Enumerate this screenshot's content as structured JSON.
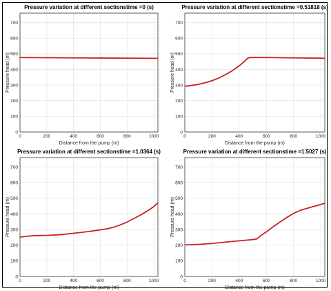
{
  "colors": {
    "series": "#cc1f1f"
  },
  "chart_data": [
    {
      "type": "line",
      "title": "Pressure variation at different sectionstime =0 (s)",
      "xlabel": "Distance from the pump (m)",
      "ylabel": "Pressure head (m)",
      "xlim": [
        0,
        1030
      ],
      "ylim": [
        0,
        760
      ],
      "xticks": [
        "0",
        "200",
        "400",
        "600",
        "800",
        "1000"
      ],
      "yticks": [
        "0",
        "100",
        "200",
        "300",
        "400",
        "500",
        "600",
        "700"
      ],
      "grid": true,
      "x": [
        0,
        200,
        400,
        600,
        800,
        1000,
        1030
      ],
      "y": [
        476,
        475,
        474,
        473,
        472,
        471,
        471
      ]
    },
    {
      "type": "line",
      "title": "Pressure variation at different sectionstime =0.51818 (s)",
      "xlabel": "Distance from the pump (m)",
      "ylabel": "Pressure head (m)",
      "xlim": [
        0,
        1030
      ],
      "ylim": [
        0,
        760
      ],
      "xticks": [
        "0",
        "200",
        "400",
        "600",
        "800",
        "1000"
      ],
      "yticks": [
        "0",
        "100",
        "200",
        "300",
        "400",
        "500",
        "600",
        "700"
      ],
      "grid": true,
      "x": [
        0,
        50,
        100,
        150,
        200,
        250,
        300,
        350,
        400,
        430,
        460,
        480,
        600,
        800,
        1000,
        1030
      ],
      "y": [
        292,
        298,
        305,
        315,
        328,
        345,
        367,
        392,
        423,
        445,
        470,
        477,
        476,
        474,
        472,
        471
      ]
    },
    {
      "type": "line",
      "title": "Pressure variation at different sectionstime =1.0364 (s)",
      "xlabel": "Distance from the pump (m)",
      "ylabel": "Pressure head (m)",
      "xlim": [
        0,
        1030
      ],
      "ylim": [
        0,
        760
      ],
      "xticks": [
        "0",
        "200",
        "400",
        "600",
        "800",
        "1000"
      ],
      "yticks": [
        "0",
        "100",
        "200",
        "300",
        "400",
        "500",
        "600",
        "700"
      ],
      "grid": true,
      "x": [
        0,
        50,
        100,
        200,
        300,
        400,
        500,
        600,
        650,
        700,
        750,
        800,
        850,
        900,
        950,
        1000,
        1030
      ],
      "y": [
        252,
        257,
        261,
        263,
        267,
        276,
        286,
        298,
        305,
        315,
        330,
        348,
        370,
        393,
        418,
        447,
        471
      ]
    },
    {
      "type": "line",
      "title": "Pressure variation at different sectionstime =1.5027 (s)",
      "xlabel": "Distance from the pump (m)",
      "ylabel": "Pressure head (m)",
      "xlim": [
        0,
        1030
      ],
      "ylim": [
        0,
        760
      ],
      "xticks": [
        "0",
        "200",
        "400",
        "600",
        "800",
        "1000"
      ],
      "yticks": [
        "0",
        "100",
        "200",
        "300",
        "400",
        "500",
        "600",
        "700"
      ],
      "grid": true,
      "x": [
        0,
        100,
        200,
        300,
        400,
        500,
        530,
        560,
        600,
        650,
        700,
        750,
        800,
        850,
        900,
        950,
        1000,
        1030
      ],
      "y": [
        202,
        205,
        211,
        220,
        228,
        236,
        240,
        262,
        285,
        318,
        348,
        377,
        403,
        423,
        436,
        448,
        460,
        468
      ]
    }
  ]
}
